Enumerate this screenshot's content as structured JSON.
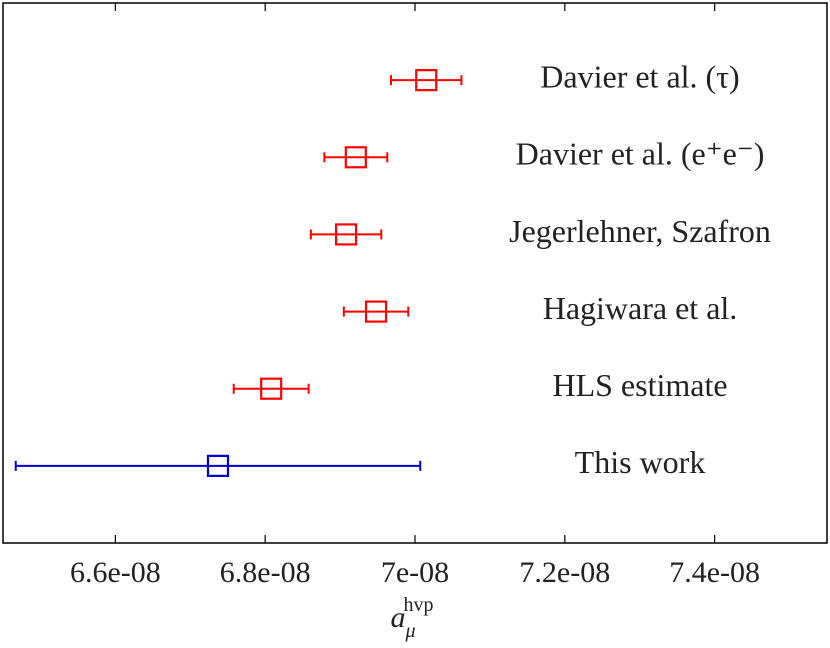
{
  "chart_data": {
    "type": "errorbar",
    "categories": [
      "Davier et al. (τ)",
      "Davier et al. (e⁺e⁻)",
      "Jegerlehner, Szafron",
      "Hagiwara et al.",
      "HLS estimate",
      "This work"
    ],
    "values": [
      7.015e-08,
      6.921e-08,
      6.908e-08,
      6.948e-08,
      6.808e-08,
      6.737e-08
    ],
    "errors": [
      4.7e-10,
      4.2e-10,
      4.7e-10,
      4.3e-10,
      5e-10,
      2.7e-09
    ],
    "colors": [
      "#ff0000",
      "#ff0000",
      "#ff0000",
      "#ff0000",
      "#ff0000",
      "#0000cc"
    ],
    "xlim": [
      6.45e-08,
      7.55e-08
    ],
    "xticks": [
      {
        "value": 6.6e-08,
        "label": "6.6e-08"
      },
      {
        "value": 6.8e-08,
        "label": "6.8e-08"
      },
      {
        "value": 7e-08,
        "label": "7e-08"
      },
      {
        "value": 7.2e-08,
        "label": "7.2e-08"
      },
      {
        "value": 7.4e-08,
        "label": "7.4e-08"
      }
    ],
    "x_label": {
      "base": "a",
      "sub": "μ",
      "sup": "hvp"
    }
  }
}
